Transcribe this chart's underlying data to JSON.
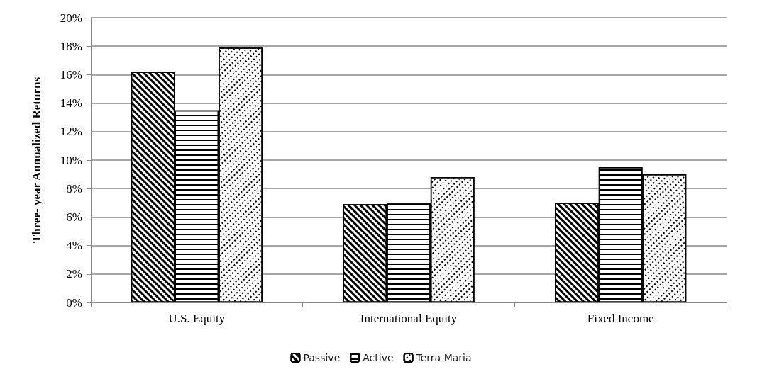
{
  "chart_data": {
    "type": "bar",
    "ylabel": "Three- year Annualized Returns",
    "categories": [
      "U.S. Equity",
      "International Equity",
      "Fixed Income"
    ],
    "series": [
      {
        "name": "Passive",
        "color": "#000000",
        "values": [
          16.2,
          6.9,
          7.0
        ]
      },
      {
        "name": "Active",
        "color": "#000000",
        "values": [
          13.5,
          7.0,
          9.5
        ]
      },
      {
        "name": "Terra Maria",
        "color": "#000000",
        "values": [
          17.9,
          8.8,
          9.0
        ]
      }
    ],
    "ylim": [
      0,
      20
    ],
    "yticks": [
      {
        "value": 0,
        "label": "0%"
      },
      {
        "value": 2,
        "label": "2%"
      },
      {
        "value": 4,
        "label": "4%"
      },
      {
        "value": 6,
        "label": "6%"
      },
      {
        "value": 8,
        "label": "8%"
      },
      {
        "value": 10,
        "label": "10%"
      },
      {
        "value": 12,
        "label": "12%"
      },
      {
        "value": 14,
        "label": "14%"
      },
      {
        "value": 16,
        "label": "16%"
      },
      {
        "value": 18,
        "label": "18%"
      },
      {
        "value": 20,
        "label": "20%"
      }
    ],
    "grid": "y",
    "legend": "bottom"
  }
}
